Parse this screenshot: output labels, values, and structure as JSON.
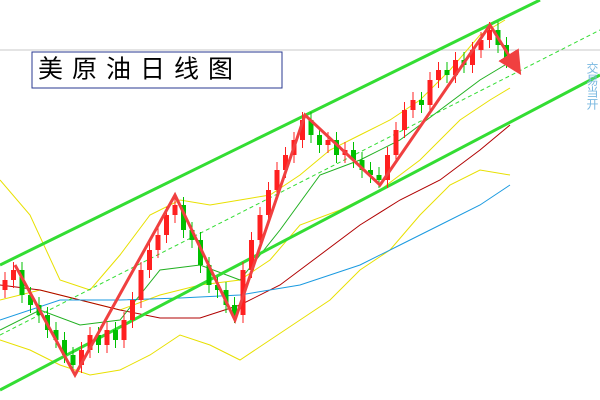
{
  "chart_data": {
    "type": "candlestick",
    "title": "美原油日线图",
    "side_text": "交易当开",
    "ylim": [
      0,
      400
    ],
    "up_color": "#ff2020",
    "down_color": "#00c000",
    "open": [
      110,
      120,
      130,
      105,
      95,
      85,
      70,
      60,
      45,
      35,
      50,
      65,
      55,
      70,
      60,
      80,
      100,
      130,
      150,
      165,
      185,
      195,
      170,
      160,
      135,
      115,
      110,
      95,
      85,
      130,
      160,
      185,
      210,
      230,
      245,
      260,
      280,
      265,
      255,
      260,
      245,
      250,
      240,
      230,
      225,
      220,
      245,
      270,
      290,
      300,
      295,
      320,
      330,
      325,
      340,
      335,
      350,
      360,
      370,
      355
    ],
    "high": [
      128,
      138,
      138,
      113,
      103,
      93,
      78,
      68,
      53,
      58,
      73,
      73,
      78,
      78,
      88,
      108,
      138,
      158,
      173,
      193,
      203,
      203,
      178,
      168,
      143,
      123,
      118,
      103,
      138,
      168,
      193,
      218,
      238,
      253,
      268,
      288,
      288,
      273,
      268,
      268,
      258,
      258,
      248,
      238,
      233,
      253,
      278,
      298,
      308,
      308,
      328,
      338,
      338,
      348,
      348,
      358,
      368,
      378,
      378,
      363
    ],
    "low": [
      102,
      112,
      97,
      87,
      77,
      62,
      52,
      37,
      27,
      27,
      42,
      47,
      47,
      52,
      52,
      72,
      92,
      122,
      142,
      157,
      177,
      162,
      152,
      127,
      107,
      102,
      87,
      77,
      77,
      122,
      152,
      177,
      202,
      222,
      237,
      252,
      257,
      247,
      247,
      237,
      237,
      232,
      222,
      217,
      212,
      212,
      237,
      262,
      282,
      287,
      287,
      312,
      317,
      317,
      327,
      327,
      342,
      352,
      347,
      332
    ],
    "close": [
      120,
      130,
      105,
      95,
      85,
      70,
      60,
      45,
      35,
      50,
      65,
      55,
      70,
      60,
      80,
      100,
      130,
      150,
      165,
      185,
      195,
      170,
      160,
      135,
      115,
      110,
      95,
      85,
      130,
      160,
      185,
      210,
      230,
      245,
      260,
      280,
      265,
      255,
      260,
      245,
      250,
      240,
      230,
      225,
      220,
      245,
      270,
      290,
      300,
      295,
      320,
      330,
      325,
      340,
      335,
      350,
      360,
      370,
      355,
      340
    ]
  }
}
